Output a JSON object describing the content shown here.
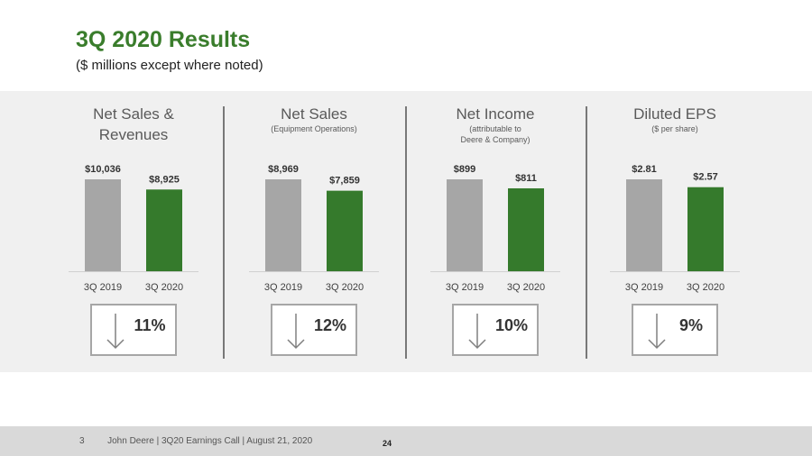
{
  "title": "3Q 2020 Results",
  "subtitle": "($ millions except where noted)",
  "colors": {
    "prior": "#a6a6a6",
    "current": "#357a2c",
    "accent": "#3a7d2c"
  },
  "chart_data": [
    {
      "type": "bar",
      "title": "Net Sales &",
      "title2": "Revenues",
      "note": "",
      "note2": "",
      "categories": [
        "3Q 2019",
        "3Q 2020"
      ],
      "values": [
        10036,
        8925
      ],
      "value_labels": [
        "$10,036",
        "$8,925"
      ],
      "change": "11%",
      "change_direction": "down"
    },
    {
      "type": "bar",
      "title": "Net Sales",
      "title2": "",
      "note": "(Equipment Operations)",
      "note2": "",
      "categories": [
        "3Q 2019",
        "3Q 2020"
      ],
      "values": [
        8969,
        7859
      ],
      "value_labels": [
        "$8,969",
        "$7,859"
      ],
      "change": "12%",
      "change_direction": "down"
    },
    {
      "type": "bar",
      "title": "Net Income",
      "title2": "",
      "note": "(attributable to",
      "note2": "Deere & Company)",
      "categories": [
        "3Q 2019",
        "3Q 2020"
      ],
      "values": [
        899,
        811
      ],
      "value_labels": [
        "$899",
        "$811"
      ],
      "change": "10%",
      "change_direction": "down"
    },
    {
      "type": "bar",
      "title": "Diluted EPS",
      "title2": "",
      "note": "($ per share)",
      "note2": "",
      "categories": [
        "3Q 2019",
        "3Q 2020"
      ],
      "values": [
        2.81,
        2.57
      ],
      "value_labels": [
        "$2.81",
        "$2.57"
      ],
      "change": "9%",
      "change_direction": "down"
    }
  ],
  "footer": {
    "slide_number": "3",
    "text": "John Deere | 3Q20 Earnings Call | August 21, 2020",
    "page": "24"
  }
}
